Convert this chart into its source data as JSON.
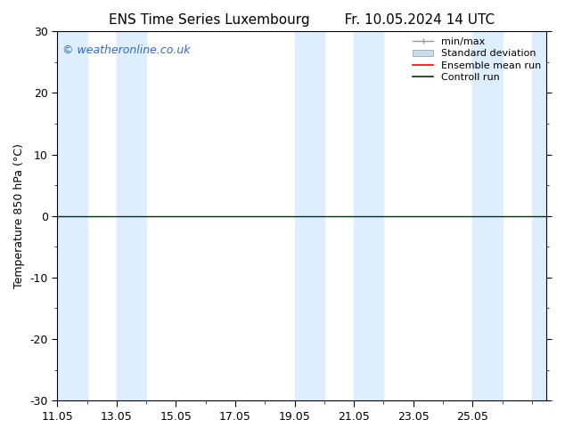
{
  "title_left": "ENS Time Series Luxembourg",
  "title_right": "Fr. 10.05.2024 14 UTC",
  "ylabel": "Temperature 850 hPa (°C)",
  "ylim": [
    -30,
    30
  ],
  "yticks": [
    -30,
    -20,
    -10,
    0,
    10,
    20,
    30
  ],
  "xtick_labels": [
    "11.05",
    "13.05",
    "15.05",
    "17.05",
    "19.05",
    "21.05",
    "23.05",
    "25.05"
  ],
  "xtick_positions": [
    0,
    2,
    4,
    6,
    8,
    10,
    12,
    14
  ],
  "watermark": "© weatheronline.co.uk",
  "watermark_color": "#3366cc",
  "bg_color": "#ffffff",
  "plot_bg_color": "#ffffff",
  "shaded_bands_color": "#ddeeff",
  "shaded_bands": [
    [
      0.0,
      1.0
    ],
    [
      2.0,
      3.0
    ],
    [
      8.0,
      9.0
    ],
    [
      10.0,
      11.0
    ],
    [
      14.0,
      15.0
    ],
    [
      16.0,
      16.5
    ]
  ],
  "zero_line_color": "#003300",
  "zero_line_value": 0,
  "ensemble_mean_color": "#ff0000",
  "control_run_color": "#003300",
  "minmax_color": "#999999",
  "stddev_color": "#c8dcea",
  "legend_labels": [
    "min/max",
    "Standard deviation",
    "Ensemble mean run",
    "Controll run"
  ],
  "font_size_title": 11,
  "font_size_legend": 8,
  "font_size_axis": 9,
  "font_size_watermark": 9,
  "xlim": [
    0,
    16.5
  ]
}
